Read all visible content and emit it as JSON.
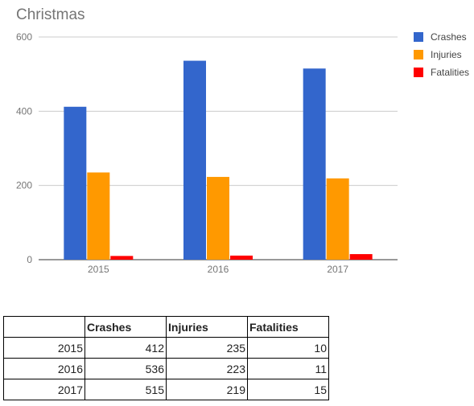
{
  "chart_data": {
    "type": "bar",
    "title": "Christmas",
    "categories": [
      "2015",
      "2016",
      "2017"
    ],
    "series": [
      {
        "name": "Crashes",
        "values": [
          412,
          536,
          515
        ],
        "color": "#3366cc"
      },
      {
        "name": "Injuries",
        "values": [
          235,
          223,
          219
        ],
        "color": "#ff9900"
      },
      {
        "name": "Fatalities",
        "values": [
          10,
          11,
          15
        ],
        "color": "#ff0000"
      }
    ],
    "ylim": [
      0,
      600
    ],
    "yticks": [
      0,
      200,
      400,
      600
    ],
    "grid": true,
    "legend": "right"
  },
  "table": {
    "headers": [
      "",
      "Crashes",
      "Injuries",
      "Fatalities"
    ],
    "rows": [
      [
        "2015",
        "412",
        "235",
        "10"
      ],
      [
        "2016",
        "536",
        "223",
        "11"
      ],
      [
        "2017",
        "515",
        "219",
        "15"
      ]
    ]
  }
}
